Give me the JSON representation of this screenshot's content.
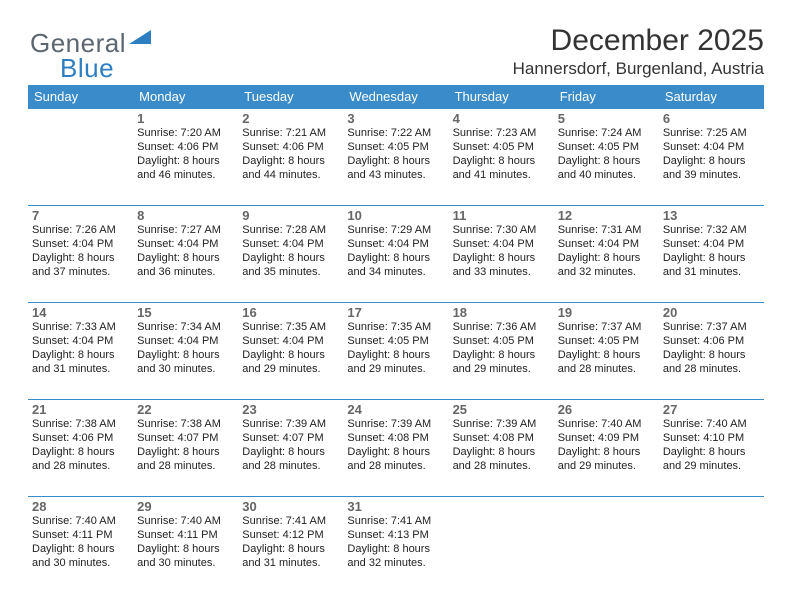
{
  "brand": {
    "part1": "General",
    "part2": "Blue"
  },
  "title": "December 2025",
  "location": "Hannersdorf, Burgenland, Austria",
  "styling": {
    "header_bg": "#3a8bca",
    "header_fg": "#ffffff",
    "row_border": "#3a8bca",
    "daynum_color": "#666666",
    "text_color": "#222222",
    "logo_gray": "#5c6670",
    "logo_blue": "#2d7fc1",
    "title_fontsize": 30,
    "location_fontsize": 17,
    "cell_fontsize": 11
  },
  "weekdays": [
    "Sunday",
    "Monday",
    "Tuesday",
    "Wednesday",
    "Thursday",
    "Friday",
    "Saturday"
  ],
  "weeks": [
    [
      null,
      {
        "d": "1",
        "sr": "7:20 AM",
        "ss": "4:06 PM",
        "dl1": "8 hours",
        "dl2": "and 46 minutes."
      },
      {
        "d": "2",
        "sr": "7:21 AM",
        "ss": "4:06 PM",
        "dl1": "8 hours",
        "dl2": "and 44 minutes."
      },
      {
        "d": "3",
        "sr": "7:22 AM",
        "ss": "4:05 PM",
        "dl1": "8 hours",
        "dl2": "and 43 minutes."
      },
      {
        "d": "4",
        "sr": "7:23 AM",
        "ss": "4:05 PM",
        "dl1": "8 hours",
        "dl2": "and 41 minutes."
      },
      {
        "d": "5",
        "sr": "7:24 AM",
        "ss": "4:05 PM",
        "dl1": "8 hours",
        "dl2": "and 40 minutes."
      },
      {
        "d": "6",
        "sr": "7:25 AM",
        "ss": "4:04 PM",
        "dl1": "8 hours",
        "dl2": "and 39 minutes."
      }
    ],
    [
      {
        "d": "7",
        "sr": "7:26 AM",
        "ss": "4:04 PM",
        "dl1": "8 hours",
        "dl2": "and 37 minutes."
      },
      {
        "d": "8",
        "sr": "7:27 AM",
        "ss": "4:04 PM",
        "dl1": "8 hours",
        "dl2": "and 36 minutes."
      },
      {
        "d": "9",
        "sr": "7:28 AM",
        "ss": "4:04 PM",
        "dl1": "8 hours",
        "dl2": "and 35 minutes."
      },
      {
        "d": "10",
        "sr": "7:29 AM",
        "ss": "4:04 PM",
        "dl1": "8 hours",
        "dl2": "and 34 minutes."
      },
      {
        "d": "11",
        "sr": "7:30 AM",
        "ss": "4:04 PM",
        "dl1": "8 hours",
        "dl2": "and 33 minutes."
      },
      {
        "d": "12",
        "sr": "7:31 AM",
        "ss": "4:04 PM",
        "dl1": "8 hours",
        "dl2": "and 32 minutes."
      },
      {
        "d": "13",
        "sr": "7:32 AM",
        "ss": "4:04 PM",
        "dl1": "8 hours",
        "dl2": "and 31 minutes."
      }
    ],
    [
      {
        "d": "14",
        "sr": "7:33 AM",
        "ss": "4:04 PM",
        "dl1": "8 hours",
        "dl2": "and 31 minutes."
      },
      {
        "d": "15",
        "sr": "7:34 AM",
        "ss": "4:04 PM",
        "dl1": "8 hours",
        "dl2": "and 30 minutes."
      },
      {
        "d": "16",
        "sr": "7:35 AM",
        "ss": "4:04 PM",
        "dl1": "8 hours",
        "dl2": "and 29 minutes."
      },
      {
        "d": "17",
        "sr": "7:35 AM",
        "ss": "4:05 PM",
        "dl1": "8 hours",
        "dl2": "and 29 minutes."
      },
      {
        "d": "18",
        "sr": "7:36 AM",
        "ss": "4:05 PM",
        "dl1": "8 hours",
        "dl2": "and 29 minutes."
      },
      {
        "d": "19",
        "sr": "7:37 AM",
        "ss": "4:05 PM",
        "dl1": "8 hours",
        "dl2": "and 28 minutes."
      },
      {
        "d": "20",
        "sr": "7:37 AM",
        "ss": "4:06 PM",
        "dl1": "8 hours",
        "dl2": "and 28 minutes."
      }
    ],
    [
      {
        "d": "21",
        "sr": "7:38 AM",
        "ss": "4:06 PM",
        "dl1": "8 hours",
        "dl2": "and 28 minutes."
      },
      {
        "d": "22",
        "sr": "7:38 AM",
        "ss": "4:07 PM",
        "dl1": "8 hours",
        "dl2": "and 28 minutes."
      },
      {
        "d": "23",
        "sr": "7:39 AM",
        "ss": "4:07 PM",
        "dl1": "8 hours",
        "dl2": "and 28 minutes."
      },
      {
        "d": "24",
        "sr": "7:39 AM",
        "ss": "4:08 PM",
        "dl1": "8 hours",
        "dl2": "and 28 minutes."
      },
      {
        "d": "25",
        "sr": "7:39 AM",
        "ss": "4:08 PM",
        "dl1": "8 hours",
        "dl2": "and 28 minutes."
      },
      {
        "d": "26",
        "sr": "7:40 AM",
        "ss": "4:09 PM",
        "dl1": "8 hours",
        "dl2": "and 29 minutes."
      },
      {
        "d": "27",
        "sr": "7:40 AM",
        "ss": "4:10 PM",
        "dl1": "8 hours",
        "dl2": "and 29 minutes."
      }
    ],
    [
      {
        "d": "28",
        "sr": "7:40 AM",
        "ss": "4:11 PM",
        "dl1": "8 hours",
        "dl2": "and 30 minutes."
      },
      {
        "d": "29",
        "sr": "7:40 AM",
        "ss": "4:11 PM",
        "dl1": "8 hours",
        "dl2": "and 30 minutes."
      },
      {
        "d": "30",
        "sr": "7:41 AM",
        "ss": "4:12 PM",
        "dl1": "8 hours",
        "dl2": "and 31 minutes."
      },
      {
        "d": "31",
        "sr": "7:41 AM",
        "ss": "4:13 PM",
        "dl1": "8 hours",
        "dl2": "and 32 minutes."
      },
      null,
      null,
      null
    ]
  ],
  "labels": {
    "sunrise": "Sunrise:",
    "sunset": "Sunset:",
    "daylight": "Daylight:"
  }
}
